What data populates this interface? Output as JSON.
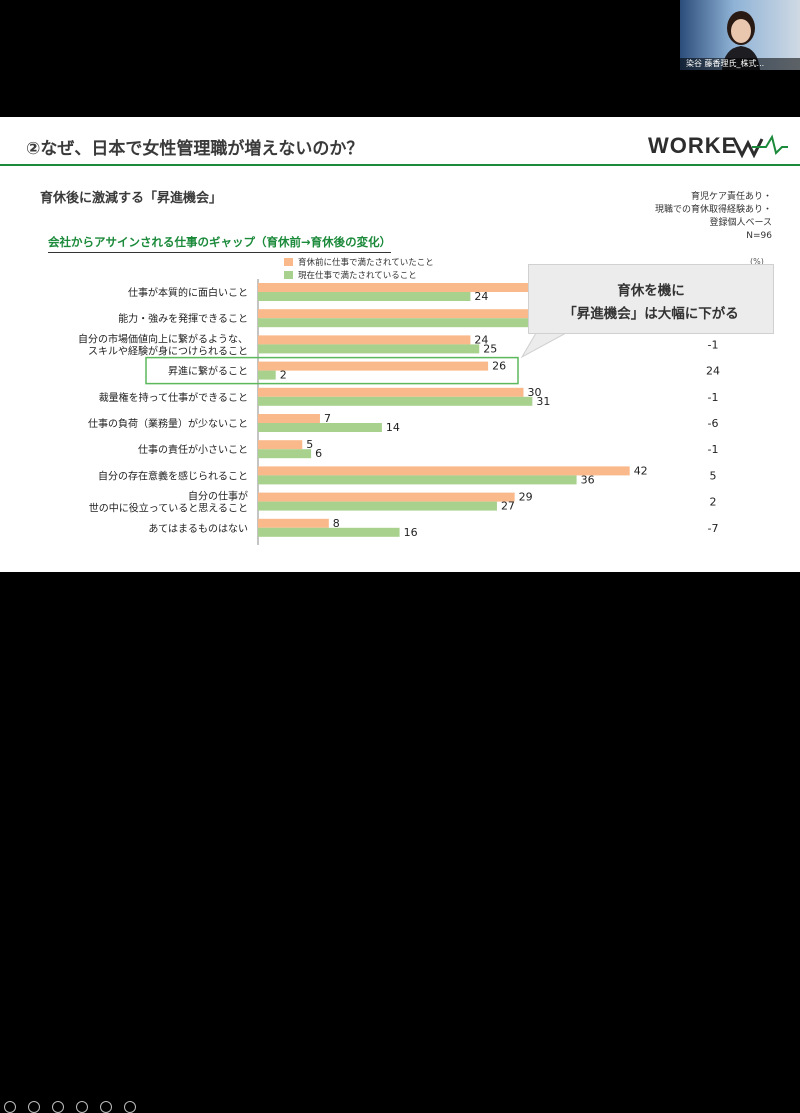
{
  "slide": {
    "title": "②なぜ、日本で女性管理職が増えないのか？",
    "logo_text": "WORKEVO",
    "subtitle": "育休後に激減する「昇進機会」",
    "note": "育児ケア責任あり・\n現職での育休取得経験あり・\n登録個人ベース\nN=96",
    "chart_title": "会社からアサインされる仕事のギャップ（育休前→育休後の変化）",
    "unit": "(%)",
    "callout_line1": "育休を機に",
    "callout_line2": "「昇進機会」は大幅に下がる"
  },
  "webcam": {
    "name_label": "染谷 藤香理氏_株式..."
  },
  "colors": {
    "before": "#f9b98a",
    "after": "#a9d18e",
    "accent": "#1b8a3a",
    "highlight_box": "#5cb85c"
  },
  "chart_data": {
    "type": "bar",
    "orientation": "horizontal",
    "categories": [
      [
        "仕事が本質的に面白いこと"
      ],
      [
        "能力・強みを発揮できること"
      ],
      [
        "自分の市場価値向上に繋がるような、",
        "スキルや経験が身につけられること"
      ],
      [
        "昇進に繋がること"
      ],
      [
        "裁量権を持って仕事ができること"
      ],
      [
        "仕事の負荷（業務量）が少ないこと"
      ],
      [
        "仕事の責任が小さいこと"
      ],
      [
        "自分の存在意義を感じられること"
      ],
      [
        "自分の仕事が",
        "世の中に役立っていると思えること"
      ],
      [
        "あてはまるものはない"
      ]
    ],
    "series": [
      {
        "name": "育休前に仕事で満たされていたこと",
        "values": [
          null,
          null,
          24,
          26,
          30,
          7,
          5,
          42,
          29,
          8
        ],
        "value_labels": [
          "",
          "",
          "24",
          "26",
          "30",
          "7",
          "5",
          "42",
          "29",
          "8"
        ]
      },
      {
        "name": "現在仕事で満たされていること",
        "values": [
          24,
          null,
          25,
          2,
          31,
          14,
          6,
          36,
          27,
          16
        ],
        "value_labels": [
          "24",
          "",
          "25",
          "2",
          "31",
          "14",
          "6",
          "36",
          "27",
          "16"
        ]
      }
    ],
    "hidden_bar_extent": [
      42,
      42,
      null,
      null,
      null,
      null,
      null,
      null,
      null,
      null
    ],
    "differences": [
      "",
      "",
      "-1",
      "24",
      "-1",
      "-6",
      "-1",
      "5",
      "2",
      "-7"
    ],
    "highlighted_category_index": 3,
    "xlim": [
      0,
      50
    ],
    "legend_position": "top"
  }
}
